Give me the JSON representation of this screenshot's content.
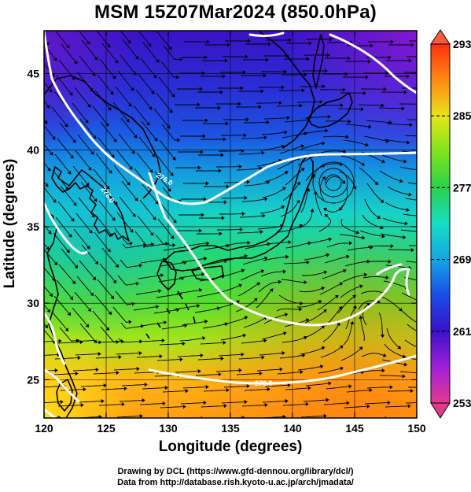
{
  "title": "MSM 15Z07Mar2024 (850.0hPa)",
  "axes": {
    "xlabel": "Longitude (degrees)",
    "ylabel": "Latitude  (degrees)",
    "xlim": [
      120,
      150
    ],
    "ylim": [
      22.5,
      47.8
    ],
    "xticks": [
      120,
      125,
      130,
      135,
      140,
      145,
      150
    ],
    "yticks": [
      25,
      30,
      35,
      40,
      45
    ]
  },
  "colorbar": {
    "ticks": [
      293,
      285,
      277,
      269,
      261,
      253
    ],
    "range": [
      253,
      293
    ],
    "colors": [
      "#e23a8d",
      "#a020d8",
      "#3a10c8",
      "#1a4ce8",
      "#14a6e4",
      "#18dcc4",
      "#28d44a",
      "#7ee41c",
      "#e8e418",
      "#ff8a10",
      "#ff3010"
    ]
  },
  "contour_labels": [
    "276.0",
    "276.0",
    "276.0"
  ],
  "credits": [
    "Drawing by DCL (https://www.gfd-dennou.org/library/dcl/)",
    "Data from http://database.rish.kyoto-u.ac.jp/arch/jmadata/"
  ]
}
